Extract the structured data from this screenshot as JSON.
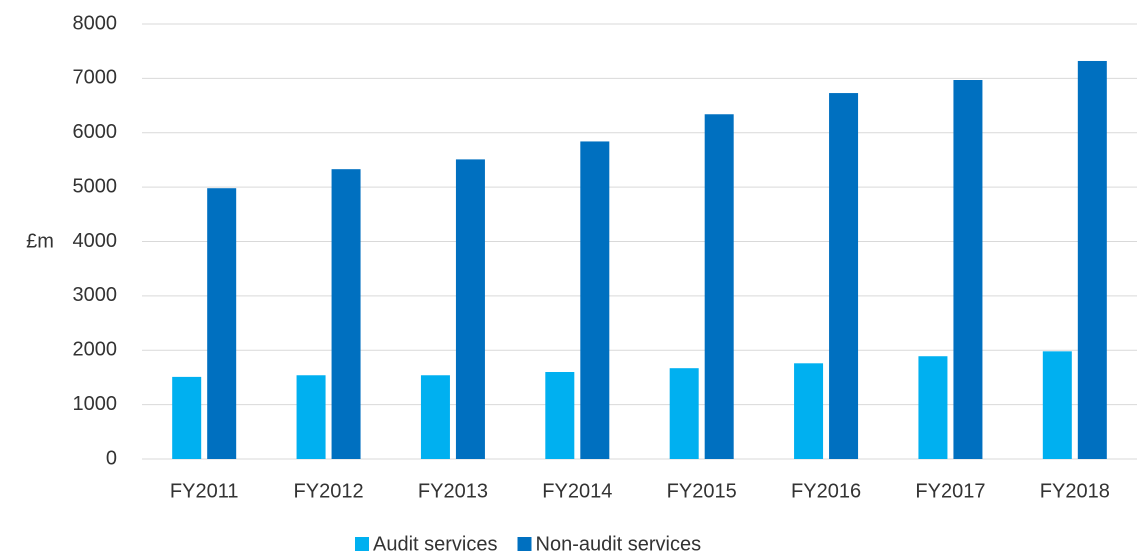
{
  "chart_data": {
    "type": "bar",
    "y_label": "£m",
    "categories": [
      "FY2011",
      "FY2012",
      "FY2013",
      "FY2014",
      "FY2015",
      "FY2016",
      "FY2017",
      "FY2018"
    ],
    "series": [
      {
        "name": "Audit services",
        "color": "#00b0f0",
        "values": [
          1510,
          1540,
          1540,
          1600,
          1670,
          1760,
          1890,
          1980
        ]
      },
      {
        "name": "Non-audit services",
        "color": "#0070c0",
        "values": [
          4980,
          5330,
          5510,
          5840,
          6340,
          6730,
          6970,
          7320
        ]
      }
    ],
    "ylim": [
      0,
      8000
    ],
    "yticks": [
      0,
      1000,
      2000,
      3000,
      4000,
      5000,
      6000,
      7000,
      8000
    ],
    "grid": true,
    "legend": "bottom"
  }
}
